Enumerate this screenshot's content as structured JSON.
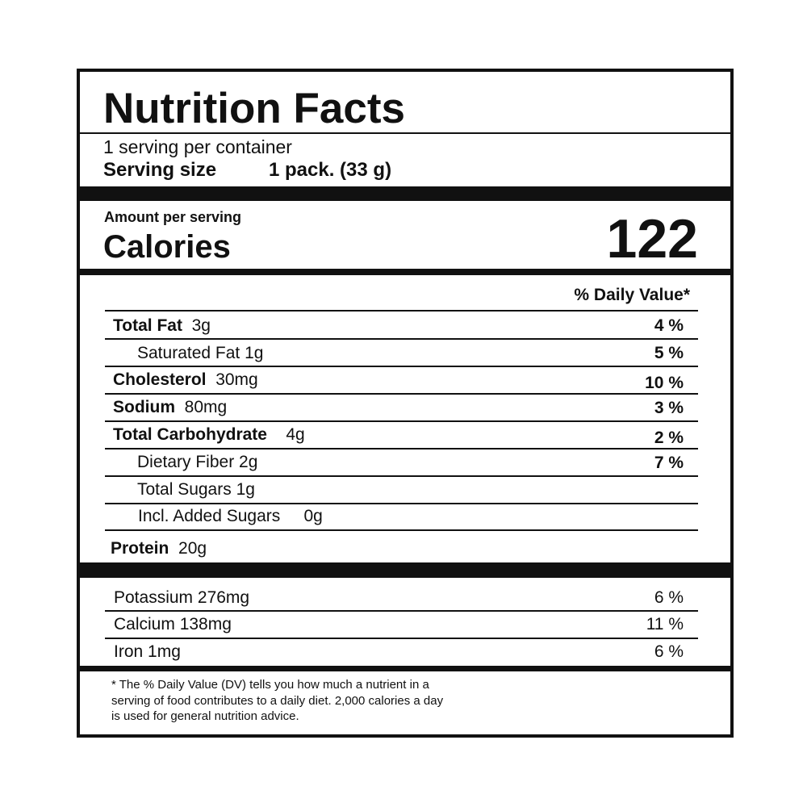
{
  "header": {
    "title": "Nutrition Facts"
  },
  "serving": {
    "per_container": "1 serving per container",
    "size_label": "Serving size",
    "size_value": "1 pack. (33 g)"
  },
  "calories": {
    "amount_label": "Amount per serving",
    "label": "Calories",
    "value": "122"
  },
  "daily_value_header": "% Daily Value*",
  "nutrients": [
    {
      "name": "Total Fat",
      "amount": "3g",
      "dv": "4 %"
    },
    {
      "name": "Saturated Fat",
      "amount": "1g",
      "dv": "5 %"
    },
    {
      "name": "Cholesterol",
      "amount": "30mg",
      "dv": "10 %"
    },
    {
      "name": "Sodium",
      "amount": "80mg",
      "dv": "3 %"
    },
    {
      "name": "Total Carbohydrate",
      "amount": "4g",
      "dv": "2 %"
    },
    {
      "name": "Dietary Fiber",
      "amount": "2g",
      "dv": "7 %"
    },
    {
      "name": "Total Sugars",
      "amount": "1g"
    },
    {
      "name": "Incl. Added Sugars",
      "amount": "0g"
    },
    {
      "name": "Protein",
      "amount": "20g"
    }
  ],
  "minerals": [
    {
      "name": "Potassium",
      "amount": "276mg",
      "dv": "6 %"
    },
    {
      "name": "Calcium",
      "amount": "138mg",
      "dv": "11 %"
    },
    {
      "name": "Iron",
      "amount": "1mg",
      "dv": "6 %"
    }
  ],
  "footnote": [
    "* The % Daily Value (DV) tells you how much a nutrient in a",
    "serving of food contributes to a daily diet. 2,000 calories a day",
    "is used for general nutrition advice."
  ]
}
